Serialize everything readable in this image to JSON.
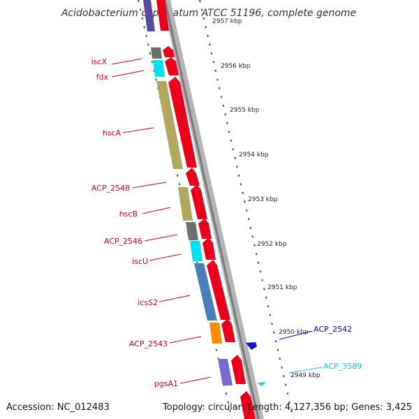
{
  "title": "Acidobacterium capsulatum ATCC 51196, complete genome",
  "accession": "Accession: NC_012483",
  "summary": "Topology: circular; Length: 4,127,356 bp; Genes: 3,425",
  "colors": {
    "forward_arrow": "#e8001c",
    "reverse_arrow": "#1010d0",
    "trna_arrow": "#33c8e8",
    "backbone": "#9a9a9a",
    "tick": "#1a7a1a",
    "label_red": "#d0001c",
    "label_blue": "#0000c0",
    "label_cyan": "#20b8d8"
  },
  "ruler_labels": [
    "2957 kbp",
    "2956 kbp",
    "2955 kbp",
    "2954 kbp",
    "2953 kbp",
    "2952 kbp",
    "2951 kbp",
    "2950 kbp",
    "2949 kbp"
  ],
  "genes": [
    {
      "name": "",
      "color": "#5a4a9a",
      "arrow": "red",
      "label_color": "red"
    },
    {
      "name": "iscX",
      "color": "#6e6e6e",
      "arrow": "red",
      "label_color": "red"
    },
    {
      "name": "fdx",
      "color": "#00e0f0",
      "arrow": "red",
      "label_color": "red"
    },
    {
      "name": "hscA",
      "color": "#b0a860",
      "arrow": "red",
      "label_color": "red"
    },
    {
      "name": "ACP_2548",
      "color": "",
      "arrow": "red",
      "label_color": "red"
    },
    {
      "name": "hscB",
      "color": "#b0a860",
      "arrow": "red",
      "label_color": "red"
    },
    {
      "name": "ACP_2546",
      "color": "#6e6e6e",
      "arrow": "red",
      "label_color": "red"
    },
    {
      "name": "iscU",
      "color": "#00e0f0",
      "arrow": "red",
      "label_color": "red"
    },
    {
      "name": "icsS2",
      "color": "#4a7fb8",
      "arrow": "red",
      "label_color": "red"
    },
    {
      "name": "ACP_2543",
      "color": "#ff8c00",
      "arrow": "red",
      "label_color": "red"
    },
    {
      "name": "ACP_2542",
      "color": "",
      "arrow": "blue",
      "label_color": "blue"
    },
    {
      "name": "ACP_3589",
      "color": "",
      "arrow": "cyan",
      "label_color": "cyan"
    },
    {
      "name": "pgsA1",
      "color": "#7a6ad0",
      "arrow": "red",
      "label_color": "red"
    }
  ]
}
